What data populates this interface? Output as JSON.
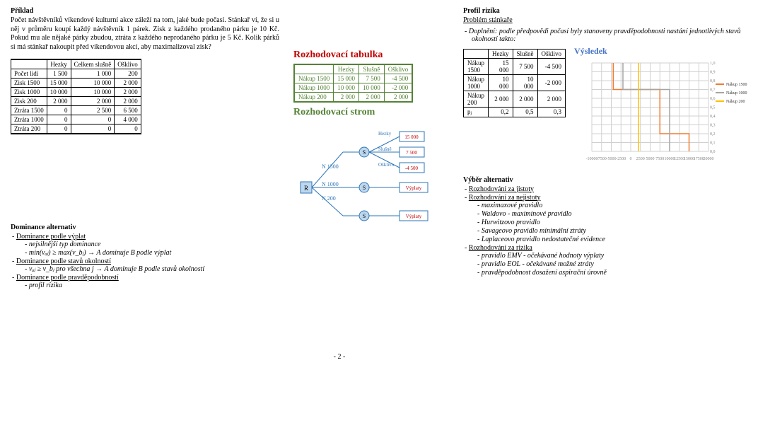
{
  "left": {
    "title": "Příklad",
    "para": "Počet návštěvníků víkendové kulturní akce záleží na tom, jaké bude počasí. Stánkař ví, že si u něj v průměru koupí každý návštěvník 1 párek. Zisk z každého prodaného párku je 10 Kč. Pokud mu ale nějaké párky zbudou, ztráta z každého neprodaného párku je 5 Kč. Kolik párků si má stánkař nakoupit před víkendovou akcí, aby maximalizoval zisk?",
    "table1": {
      "headers": [
        "",
        "Hezky",
        "Celkem slušně",
        "Ošklivo"
      ],
      "rows": [
        [
          "Počet lidí",
          "1 500",
          "1 000",
          "200"
        ],
        [
          "Zisk 1500",
          "15 000",
          "10 000",
          "2 000"
        ],
        [
          "Zisk 1000",
          "10 000",
          "10 000",
          "2 000"
        ],
        [
          "Zisk 200",
          "2 000",
          "2 000",
          "2 000"
        ],
        [
          "Ztráta 1500",
          "0",
          "2 500",
          "6 500"
        ],
        [
          "Ztráta 1000",
          "0",
          "0",
          "4 000"
        ],
        [
          "Ztráta 200",
          "0",
          "0",
          "0"
        ]
      ]
    },
    "dom_title": "Dominance alternativ",
    "dom_items": [
      {
        "t": "Dominance podle výplat",
        "u": true,
        "sub": [
          {
            "t": "nejsilnější typ dominance",
            "i": true
          },
          {
            "t": "min(vₐⱼ) ≥ max(v_bⱼ) → A dominuje B podle výplat",
            "i": true
          }
        ]
      },
      {
        "t": "Dominance podle stavů okolností",
        "u": true,
        "sub": [
          {
            "t": "vₐⱼ ≥ v_bⱼ pro všechna j → A dominuje B podle stavů okolností",
            "i": true
          }
        ]
      },
      {
        "t": "Dominance podle pravděpodobností",
        "u": true,
        "sub": [
          {
            "t": "profil rizika",
            "i": true
          }
        ]
      }
    ]
  },
  "mid": {
    "roz_title": "Rozhodovací tabulka",
    "roz_table": {
      "headers": [
        "",
        "Hezky",
        "Slušně",
        "Ošklivo"
      ],
      "rows": [
        [
          "Nákup 1500",
          "15 000",
          "7 500",
          "-4 500"
        ],
        [
          "Nákup 1000",
          "10 000",
          "10 000",
          "-2 000"
        ],
        [
          "Nákup 200",
          "2 000",
          "2 000",
          "2 000"
        ]
      ]
    },
    "tree_title": "Rozhodovací strom",
    "tree": {
      "root": "R",
      "n_labels": [
        "N 1500",
        "N 1000",
        "N 200"
      ],
      "s_labels": [
        "S",
        "S",
        "S"
      ],
      "leaves": [
        {
          "l": "Hezky",
          "v": "15 000"
        },
        {
          "l": "Slušně",
          "v": "7 500"
        },
        {
          "l": "Ošklivo",
          "v": "-4 500"
        }
      ],
      "pay": [
        "Výplaty",
        "Výplaty"
      ],
      "colors": {
        "line": "#2e75b6",
        "box": "#bdd7ee",
        "text": "#2e75b6",
        "leaf_text": "#c00000",
        "leaf_label": "#2e75b6"
      }
    }
  },
  "right": {
    "pr_title": "Profil rizika",
    "pr_sub": "Problém stánkaře",
    "pr_dopl": "Doplnění: podle předpovědi počasí byly stanoveny pravděpodobnosti nastání jednotlivých stavů okolností takto:",
    "pr_table": {
      "headers": [
        "",
        "Hezky",
        "Slušně",
        "Ošklivo"
      ],
      "rows": [
        [
          "Nákup 1500",
          "15 000",
          "7 500",
          "-4 500"
        ],
        [
          "Nákup 1000",
          "10 000",
          "10 000",
          "-2 000"
        ],
        [
          "Nákup 200",
          "2 000",
          "2 000",
          "2 000"
        ],
        [
          "pⱼ",
          "0,2",
          "0,5",
          "0,3"
        ]
      ]
    },
    "chart": {
      "title": "Výsledek",
      "xmin": -10000,
      "xmax": 20000,
      "xtick": 2500,
      "ymin": 0,
      "ymax": 1.0,
      "ytick": 0.1,
      "series": [
        {
          "name": "Nákup 1500",
          "color": "#ed7d31",
          "pts": [
            [
              -4500,
              1
            ],
            [
              -4500,
              0.7
            ],
            [
              7500,
              0.7
            ],
            [
              7500,
              0.2
            ],
            [
              15000,
              0.2
            ],
            [
              15000,
              0
            ]
          ]
        },
        {
          "name": "Nákup 1000",
          "color": "#a5a5a5",
          "pts": [
            [
              -2000,
              1
            ],
            [
              -2000,
              0.7
            ],
            [
              10000,
              0.7
            ],
            [
              10000,
              0
            ]
          ]
        },
        {
          "name": "Nákup 200",
          "color": "#ffc000",
          "pts": [
            [
              2000,
              1
            ],
            [
              2000,
              0
            ]
          ]
        }
      ],
      "grid_color": "#d0d0d0",
      "bg": "#ffffff",
      "font_size": 6
    },
    "vyb_title": "Výběr alternativ",
    "vyb_items": [
      {
        "t": "Rozhodování za jistoty",
        "u": true
      },
      {
        "t": "Rozhodování za nejistoty",
        "u": true,
        "sub": [
          {
            "t": "maximaxové pravidlo",
            "i": true
          },
          {
            "t": "Waldovo - maximinové pravidlo",
            "i": true
          },
          {
            "t": "Hurwitzovo pravidlo",
            "i": true
          },
          {
            "t": "Savageovo pravidlo minimální ztráty",
            "i": true
          },
          {
            "t": "Laplaceovo pravidlo nedostatečné evidence",
            "i": true
          }
        ]
      },
      {
        "t": "Rozhodování za rizika",
        "u": true,
        "sub": [
          {
            "t": "pravidlo EMV - očekávané hodnoty výplaty",
            "i": true
          },
          {
            "t": "pravidlo EOL - očekávané možné ztráty",
            "i": true
          },
          {
            "t": "pravděpodobnost dosažení aspirační úrovně",
            "i": true
          }
        ]
      }
    ]
  },
  "footer": "- 2 -"
}
